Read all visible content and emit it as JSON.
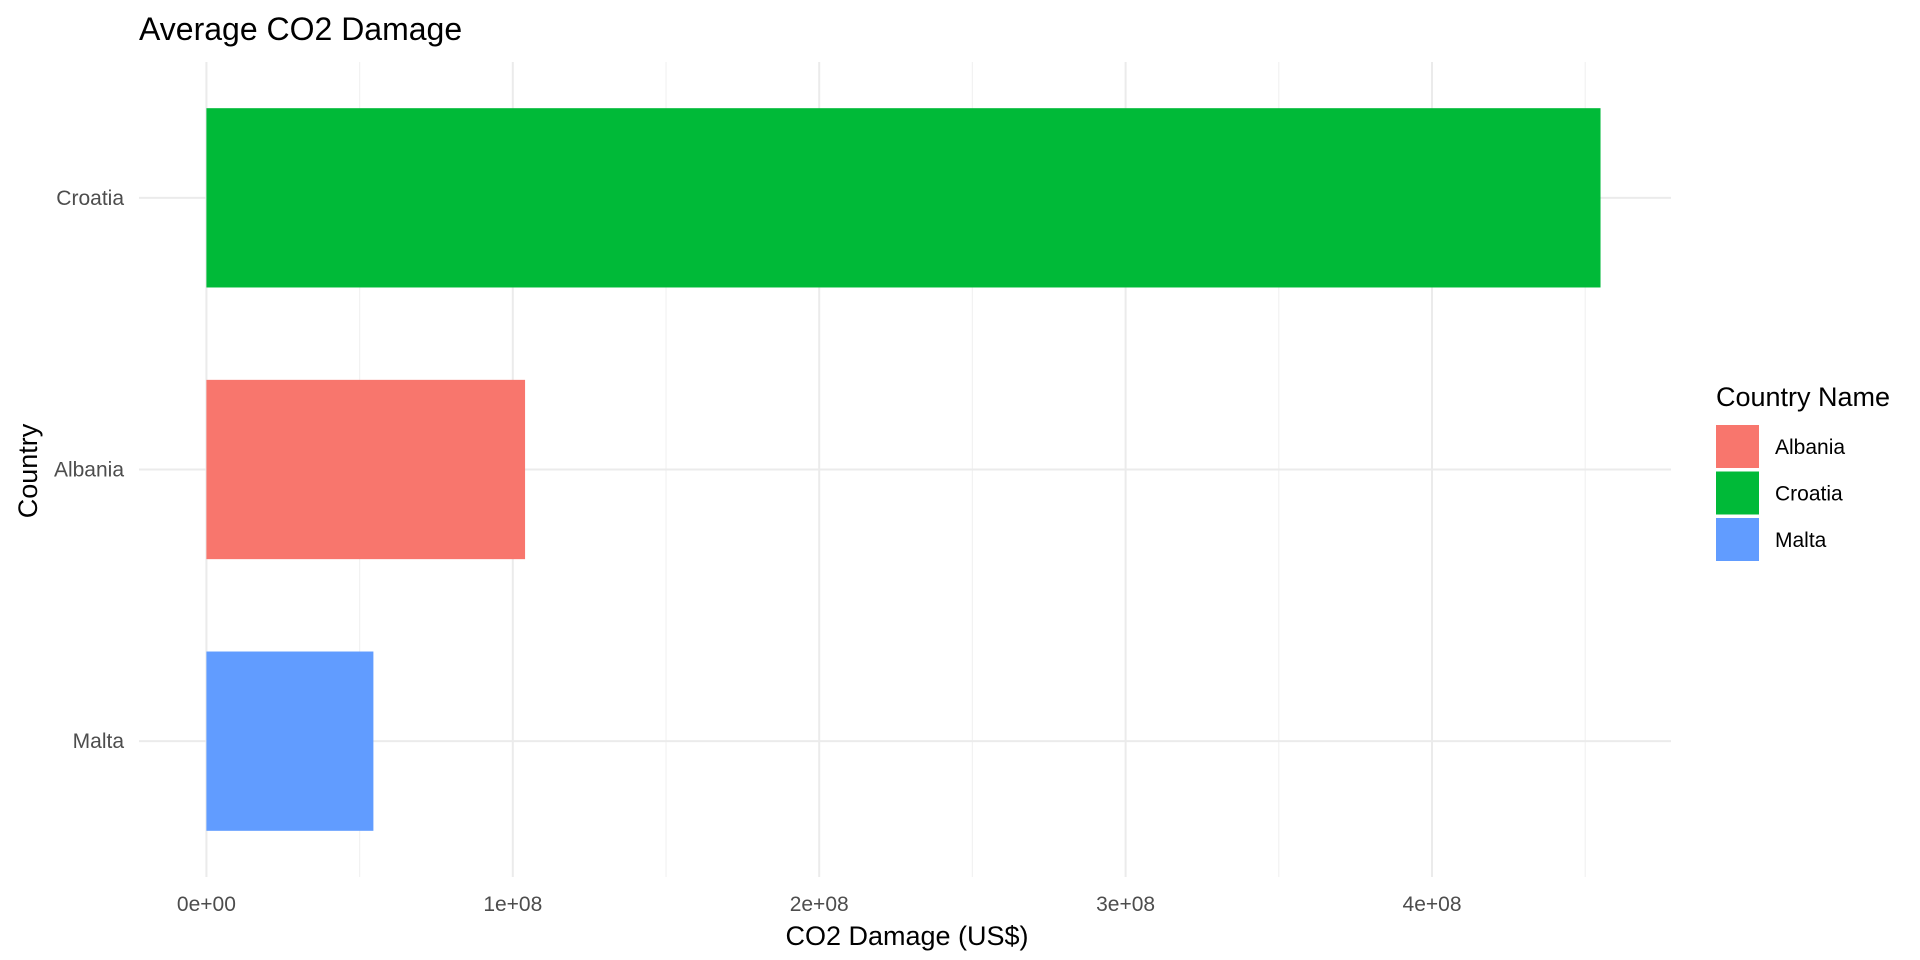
{
  "chart_data": {
    "type": "bar",
    "orientation": "horizontal",
    "title": "Average CO2 Damage",
    "xlabel": "CO2 Damage (US$)",
    "ylabel": "Country",
    "categories": [
      "Croatia",
      "Albania",
      "Malta"
    ],
    "values": [
      455000000,
      104000000,
      54500000
    ],
    "colors": [
      "#00BA38",
      "#F8766D",
      "#619CFF"
    ],
    "xlim": [
      -22000000,
      478000000
    ],
    "x_ticks": [
      0,
      100000000,
      200000000,
      300000000,
      400000000
    ],
    "x_tick_labels": [
      "0e+00",
      "1e+08",
      "2e+08",
      "3e+08",
      "4e+08"
    ],
    "x_minor_ticks": [
      50000000,
      150000000,
      250000000,
      350000000,
      450000000
    ],
    "grid": true,
    "legend": {
      "title": "Country Name",
      "position": "right",
      "items": [
        {
          "label": "Albania",
          "color": "#F8766D"
        },
        {
          "label": "Croatia",
          "color": "#00BA38"
        },
        {
          "label": "Malta",
          "color": "#619CFF"
        }
      ]
    }
  }
}
